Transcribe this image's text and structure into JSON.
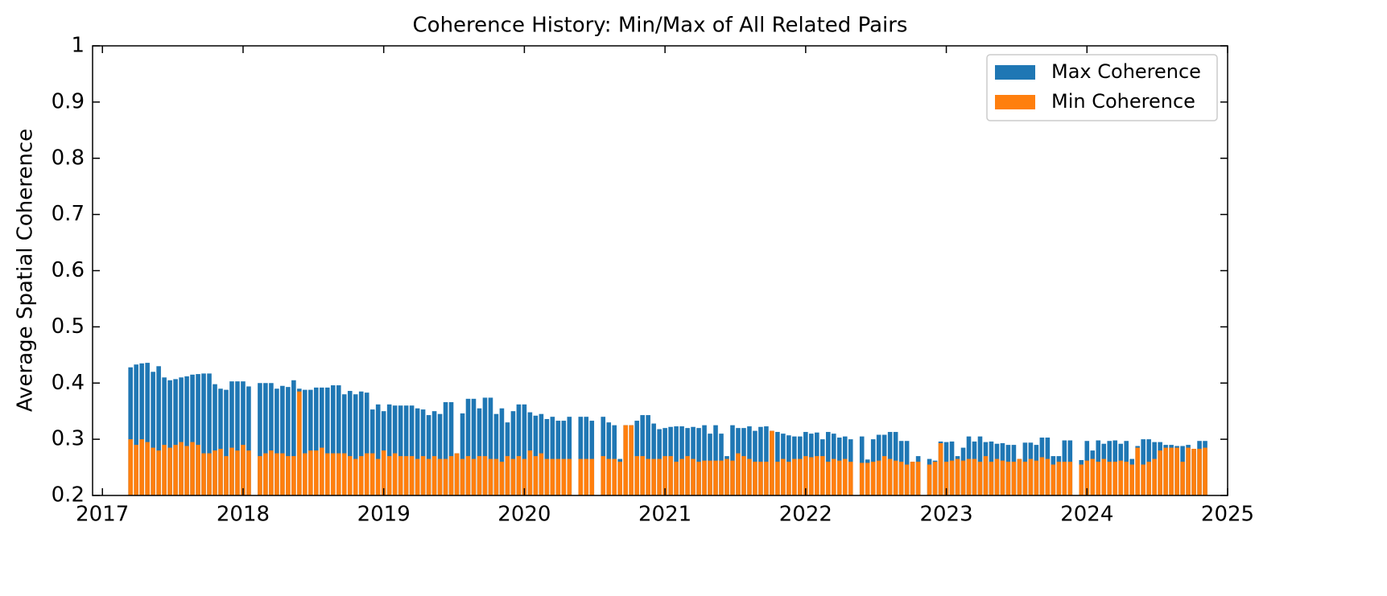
{
  "chart_data": {
    "type": "bar",
    "title": "Coherence History: Min/Max of All Related Pairs",
    "y_label": "Average Spatial Coherence",
    "x": [
      2017.2,
      2017.24,
      2017.28,
      2017.32,
      2017.36,
      2017.4,
      2017.44,
      2017.48,
      2017.52,
      2017.56,
      2017.6,
      2017.64,
      2017.68,
      2017.72,
      2017.76,
      2017.8,
      2017.84,
      2017.88,
      2017.92,
      2017.96,
      2018,
      2018.04,
      2018.08,
      2018.12,
      2018.16,
      2018.2,
      2018.24,
      2018.28,
      2018.32,
      2018.36,
      2018.4,
      2018.44,
      2018.48,
      2018.52,
      2018.56,
      2018.6,
      2018.64,
      2018.68,
      2018.72,
      2018.76,
      2018.8,
      2018.84,
      2018.88,
      2018.92,
      2018.96,
      2019,
      2019.04,
      2019.08,
      2019.12,
      2019.16,
      2019.2,
      2019.24,
      2019.28,
      2019.32,
      2019.36,
      2019.4,
      2019.44,
      2019.48,
      2019.52,
      2019.56,
      2019.6,
      2019.64,
      2019.68,
      2019.72,
      2019.76,
      2019.8,
      2019.84,
      2019.88,
      2019.92,
      2019.96,
      2020,
      2020.04,
      2020.08,
      2020.12,
      2020.16,
      2020.2,
      2020.24,
      2020.28,
      2020.32,
      2020.36,
      2020.4,
      2020.44,
      2020.48,
      2020.52,
      2020.56,
      2020.6,
      2020.64,
      2020.68,
      2020.72,
      2020.76,
      2020.8,
      2020.84,
      2020.88,
      2020.92,
      2020.96,
      2021,
      2021.04,
      2021.08,
      2021.12,
      2021.16,
      2021.2,
      2021.24,
      2021.28,
      2021.32,
      2021.36,
      2021.4,
      2021.44,
      2021.48,
      2021.52,
      2021.56,
      2021.6,
      2021.64,
      2021.68,
      2021.72,
      2021.76,
      2021.8,
      2021.84,
      2021.88,
      2021.92,
      2021.96,
      2022,
      2022.04,
      2022.08,
      2022.12,
      2022.16,
      2022.2,
      2022.24,
      2022.28,
      2022.32,
      2022.36,
      2022.4,
      2022.44,
      2022.48,
      2022.52,
      2022.56,
      2022.6,
      2022.64,
      2022.68,
      2022.72,
      2022.76,
      2022.8,
      2022.84,
      2022.88,
      2022.92,
      2022.96,
      2023,
      2023.04,
      2023.08,
      2023.12,
      2023.16,
      2023.2,
      2023.24,
      2023.28,
      2023.32,
      2023.36,
      2023.4,
      2023.44,
      2023.48,
      2023.52,
      2023.56,
      2023.6,
      2023.64,
      2023.68,
      2023.72,
      2023.76,
      2023.8,
      2023.84,
      2023.88,
      2023.92,
      2023.96,
      2024,
      2024.04,
      2024.08,
      2024.12,
      2024.16,
      2024.2,
      2024.24,
      2024.28,
      2024.32,
      2024.36,
      2024.4,
      2024.44,
      2024.48,
      2024.52,
      2024.56,
      2024.6,
      2024.64,
      2024.68,
      2024.72,
      2024.76,
      2024.8,
      2024.84
    ],
    "series": [
      {
        "name": "Max Coherence",
        "color": "#1f77b4",
        "values": [
          0.428,
          0.433,
          0.435,
          0.436,
          0.42,
          0.43,
          0.41,
          0.405,
          0.407,
          0.41,
          0.412,
          0.415,
          0.416,
          0.417,
          0.417,
          0.398,
          0.39,
          0.388,
          0.403,
          0.403,
          0.403,
          0.394,
          null,
          0.4,
          0.4,
          0.4,
          0.39,
          0.395,
          0.393,
          0.405,
          0.39,
          0.388,
          0.388,
          0.392,
          0.392,
          0.392,
          0.396,
          0.396,
          0.38,
          0.386,
          0.38,
          0.385,
          0.383,
          0.353,
          0.362,
          0.35,
          0.362,
          0.36,
          0.36,
          0.36,
          0.36,
          0.355,
          0.353,
          0.343,
          0.35,
          0.345,
          0.366,
          0.366,
          0.275,
          0.346,
          0.372,
          0.372,
          0.355,
          0.374,
          0.374,
          0.345,
          0.355,
          0.33,
          0.35,
          0.362,
          0.362,
          0.348,
          0.342,
          0.345,
          0.336,
          0.34,
          0.333,
          0.333,
          0.34,
          null,
          0.34,
          0.34,
          0.333,
          null,
          0.34,
          0.33,
          0.325,
          0.265,
          0.325,
          0.325,
          0.333,
          0.343,
          0.343,
          0.328,
          0.318,
          0.32,
          0.322,
          0.323,
          0.323,
          0.32,
          0.322,
          0.32,
          0.325,
          0.31,
          0.325,
          0.31,
          0.27,
          0.325,
          0.32,
          0.32,
          0.323,
          0.315,
          0.322,
          0.323,
          0.315,
          0.313,
          0.31,
          0.307,
          0.305,
          0.305,
          0.313,
          0.31,
          0.312,
          0.3,
          0.313,
          0.31,
          0.303,
          0.305,
          0.3,
          null,
          0.305,
          0.264,
          0.3,
          0.308,
          0.308,
          0.313,
          0.313,
          0.297,
          0.297,
          0.26,
          0.27,
          null,
          0.265,
          0.262,
          0.296,
          0.295,
          0.296,
          0.27,
          0.285,
          0.305,
          0.296,
          0.305,
          0.295,
          0.296,
          0.292,
          0.293,
          0.29,
          0.29,
          0.265,
          0.294,
          0.294,
          0.29,
          0.303,
          0.303,
          0.27,
          0.27,
          0.298,
          0.298,
          null,
          0.263,
          0.297,
          0.28,
          0.298,
          0.292,
          0.297,
          0.298,
          0.292,
          0.297,
          0.265,
          0.288,
          0.3,
          0.3,
          0.295,
          0.295,
          0.29,
          0.29,
          0.288,
          0.288,
          0.29,
          0.283,
          0.297,
          0.297
        ]
      },
      {
        "name": "Min Coherence",
        "color": "#ff7f0e",
        "values": [
          0.3,
          0.29,
          0.3,
          0.295,
          0.285,
          0.28,
          0.29,
          0.285,
          0.29,
          0.295,
          0.288,
          0.295,
          0.29,
          0.275,
          0.275,
          0.28,
          0.283,
          0.27,
          0.285,
          0.28,
          0.29,
          0.28,
          null,
          0.27,
          0.275,
          0.28,
          0.275,
          0.275,
          0.27,
          0.27,
          0.385,
          0.275,
          0.28,
          0.28,
          0.285,
          0.275,
          0.275,
          0.275,
          0.275,
          0.27,
          0.265,
          0.27,
          0.275,
          0.275,
          0.265,
          0.28,
          0.27,
          0.275,
          0.27,
          0.27,
          0.27,
          0.265,
          0.27,
          0.265,
          0.27,
          0.265,
          0.265,
          0.27,
          0.275,
          0.265,
          0.27,
          0.265,
          0.27,
          0.27,
          0.265,
          0.265,
          0.26,
          0.27,
          0.265,
          0.27,
          0.265,
          0.28,
          0.27,
          0.275,
          0.265,
          0.265,
          0.265,
          0.265,
          0.265,
          null,
          0.265,
          0.265,
          0.265,
          null,
          0.27,
          0.265,
          0.265,
          0.26,
          0.325,
          0.325,
          0.27,
          0.27,
          0.265,
          0.265,
          0.265,
          0.27,
          0.27,
          0.26,
          0.265,
          0.27,
          0.265,
          0.26,
          0.262,
          0.262,
          0.262,
          0.262,
          0.265,
          0.262,
          0.275,
          0.27,
          0.265,
          0.26,
          0.26,
          0.26,
          0.315,
          0.26,
          0.265,
          0.26,
          0.265,
          0.265,
          0.27,
          0.268,
          0.27,
          0.27,
          0.26,
          0.265,
          0.262,
          0.265,
          0.26,
          null,
          0.258,
          0.258,
          0.26,
          0.262,
          0.27,
          0.265,
          0.262,
          0.26,
          0.255,
          0.26,
          0.26,
          null,
          0.255,
          0.26,
          0.293,
          0.26,
          0.262,
          0.265,
          0.262,
          0.265,
          0.265,
          0.26,
          0.27,
          0.26,
          0.265,
          0.262,
          0.26,
          0.26,
          0.265,
          0.26,
          0.265,
          0.262,
          0.268,
          0.265,
          0.255,
          0.26,
          0.26,
          0.26,
          null,
          0.255,
          0.262,
          0.265,
          0.26,
          0.265,
          0.26,
          0.26,
          0.262,
          0.26,
          0.255,
          0.285,
          0.255,
          0.26,
          0.265,
          0.28,
          0.285,
          0.285,
          0.285,
          0.26,
          0.285,
          0.283,
          0.283,
          0.285
        ]
      }
    ],
    "xlim": [
      2016.93,
      2025.0
    ],
    "xticks": [
      2017,
      2018,
      2019,
      2020,
      2021,
      2022,
      2023,
      2024,
      2025
    ],
    "ylim": [
      0.2,
      1.0
    ],
    "yticks": [
      0.2,
      0.3,
      0.4,
      0.5,
      0.6,
      0.7,
      0.8,
      0.9,
      1.0
    ],
    "legend": "upper right",
    "grid": false
  }
}
